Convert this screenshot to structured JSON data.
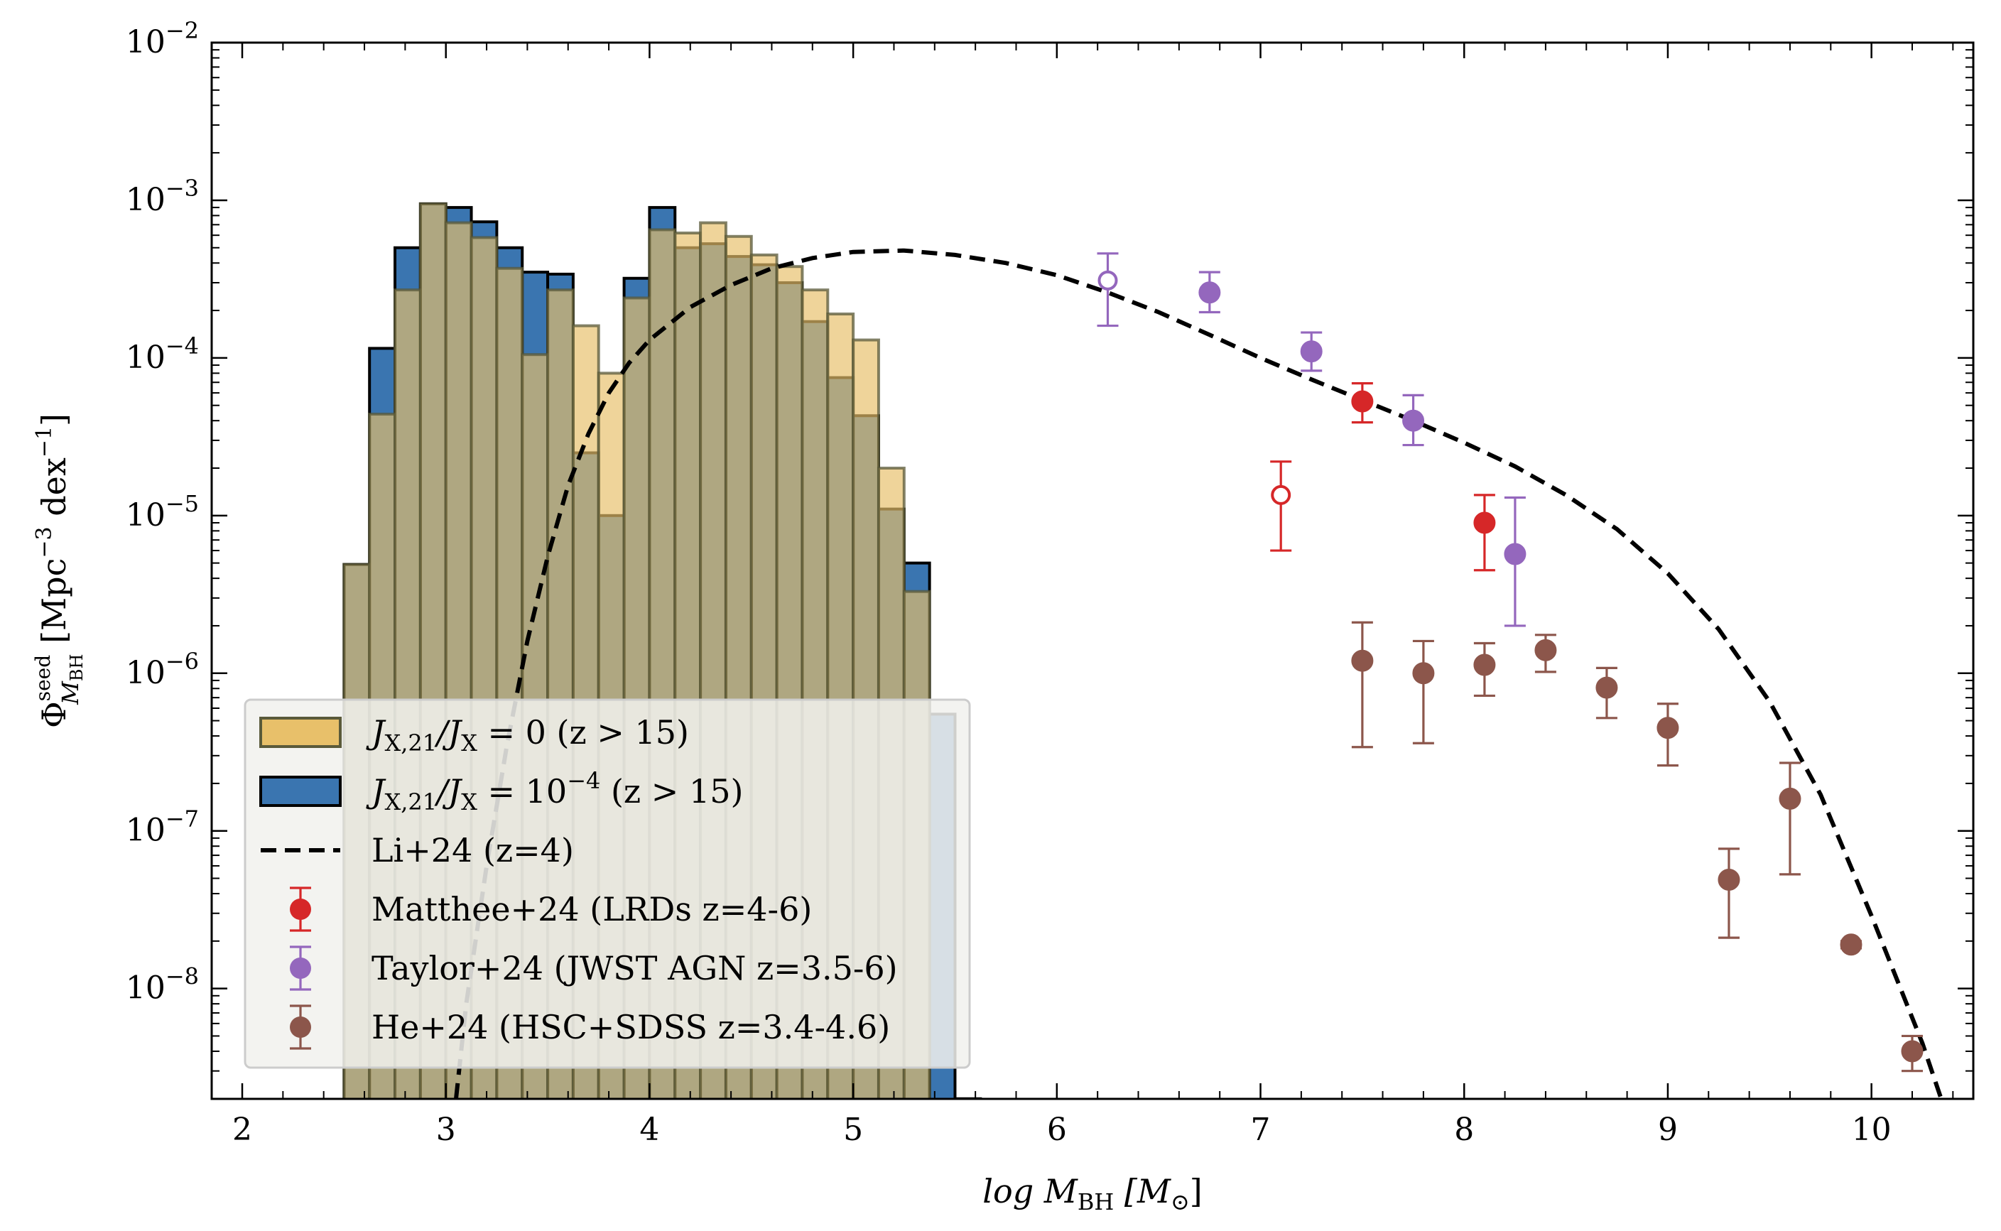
{
  "chart_data": {
    "type": "bar",
    "title": "",
    "xlabel": {
      "prefix": "log  M",
      "sub": "BH",
      "bracket": "[M",
      "bracket_sub": "⊙",
      "bracket_end": "]"
    },
    "ylabel": {
      "main": "Φ",
      "sup": "seed",
      "sub": "M",
      "subsub": "BH",
      "units_pre": "[Mpc",
      "exp1": "−3",
      "units_mid": "dex",
      "exp2": "−1",
      "units_end": "]"
    },
    "xlim": [
      1.85,
      10.5
    ],
    "ylim_log10": [
      -8.7,
      -2
    ],
    "yscale": "log",
    "x_ticks": [
      {
        "value": 2,
        "label": "2"
      },
      {
        "value": 3,
        "label": "3"
      },
      {
        "value": 4,
        "label": "4"
      },
      {
        "value": 5,
        "label": "5"
      },
      {
        "value": 6,
        "label": "6"
      },
      {
        "value": 7,
        "label": "7"
      },
      {
        "value": 8,
        "label": "8"
      },
      {
        "value": 9,
        "label": "9"
      },
      {
        "value": 10,
        "label": "10"
      }
    ],
    "y_ticks": [
      {
        "exp": -2,
        "base": "10",
        "sup": "−2"
      },
      {
        "exp": -3,
        "base": "10",
        "sup": "−3"
      },
      {
        "exp": -4,
        "base": "10",
        "sup": "−4"
      },
      {
        "exp": -5,
        "base": "10",
        "sup": "−5"
      },
      {
        "exp": -6,
        "base": "10",
        "sup": "−6"
      },
      {
        "exp": -7,
        "base": "10",
        "sup": "−7"
      },
      {
        "exp": -8,
        "base": "10",
        "sup": "−8"
      }
    ],
    "hist_bin_edges_start": 2.5,
    "hist_bin_width": 0.125,
    "histograms": [
      {
        "name": "J_X,21/J_X = 10^-4 (z > 15)",
        "color": "#3a75b0",
        "edge": "#000000",
        "values": [
          4.9e-06,
          0.000115,
          0.0005,
          0.00095,
          0.0009,
          0.00073,
          0.0005,
          0.00035,
          0.00034,
          2.5e-05,
          1e-05,
          0.00032,
          0.0009,
          0.0005,
          0.00053,
          0.00044,
          0.00039,
          0.0003,
          0.00017,
          7.5e-05,
          4.3e-05,
          1.1e-05,
          5e-06,
          5.5e-07,
          2e-09,
          1e-10,
          1e-10
        ]
      },
      {
        "name": "J_X,21/J_X = 0 (z > 15)",
        "color": "#e8c06a",
        "edge": "#5a5a3a",
        "values": [
          4.9e-06,
          4.4e-05,
          0.00027,
          0.00095,
          0.00072,
          0.00058,
          0.00037,
          0.000105,
          0.00027,
          0.00016,
          8e-05,
          0.00024,
          0.00065,
          0.00062,
          0.00072,
          0.00059,
          0.00045,
          0.00038,
          0.00027,
          0.00019,
          0.00013,
          2e-05,
          3.3e-06,
          1e-10,
          1e-10,
          1e-10,
          1e-10
        ]
      }
    ],
    "line_series": {
      "name": "Li+24 (z=4)",
      "color": "#000000",
      "x": [
        3.05,
        3.1,
        3.2,
        3.3,
        3.4,
        3.5,
        3.6,
        3.7,
        3.8,
        3.9,
        4.0,
        4.2,
        4.4,
        4.6,
        4.8,
        5.0,
        5.25,
        5.5,
        5.75,
        6.0,
        6.25,
        6.5,
        6.75,
        7.0,
        7.25,
        7.5,
        7.75,
        8.0,
        8.25,
        8.5,
        8.75,
        9.0,
        9.25,
        9.5,
        9.75,
        10.0,
        10.25,
        10.5
      ],
      "y": [
        2e-09,
        8e-09,
        6e-08,
        3.5e-07,
        1.6e-06,
        5.5e-06,
        1.55e-05,
        3.3e-05,
        6e-05,
        9.3e-05,
        0.00013,
        0.00021,
        0.00029,
        0.00037,
        0.00043,
        0.00047,
        0.00048,
        0.00045,
        0.0004,
        0.000335,
        0.00026,
        0.000195,
        0.00014,
        0.0001,
        7.3e-05,
        5.4e-05,
        4e-05,
        2.9e-05,
        2.05e-05,
        1.35e-05,
        8.2e-06,
        4.3e-06,
        1.9e-06,
        6.6e-07,
        1.7e-07,
        2.9e-08,
        4.5e-09,
        5e-10
      ]
    },
    "points": [
      {
        "name": "Matthee+24 (LRDs z=4-6)",
        "color": "#d62728",
        "data": [
          {
            "x": 7.1,
            "y": 1.35e-05,
            "ylo": 6e-06,
            "yhi": 2.2e-05,
            "open": true
          },
          {
            "x": 7.5,
            "y": 5.3e-05,
            "ylo": 3.9e-05,
            "yhi": 6.9e-05,
            "open": false
          },
          {
            "x": 8.1,
            "y": 9e-06,
            "ylo": 4.5e-06,
            "yhi": 1.35e-05,
            "open": false
          }
        ]
      },
      {
        "name": "Taylor+24 (JWST AGN z=3.5-6)",
        "color": "#9467bd",
        "data": [
          {
            "x": 6.25,
            "y": 0.00031,
            "ylo": 0.00016,
            "yhi": 0.00046,
            "open": true
          },
          {
            "x": 6.75,
            "y": 0.00026,
            "ylo": 0.000195,
            "yhi": 0.00035,
            "open": false
          },
          {
            "x": 7.25,
            "y": 0.00011,
            "ylo": 8.3e-05,
            "yhi": 0.000145,
            "open": false
          },
          {
            "x": 7.75,
            "y": 4e-05,
            "ylo": 2.8e-05,
            "yhi": 5.8e-05,
            "open": false
          },
          {
            "x": 8.25,
            "y": 5.7e-06,
            "ylo": 2e-06,
            "yhi": 1.3e-05,
            "open": false
          }
        ]
      },
      {
        "name": "He+24 (HSC+SDSS z=3.4-4.6)",
        "color": "#8c564b",
        "data": [
          {
            "x": 7.5,
            "y": 1.2e-06,
            "ylo": 3.4e-07,
            "yhi": 2.1e-06,
            "open": false
          },
          {
            "x": 7.8,
            "y": 1e-06,
            "ylo": 3.6e-07,
            "yhi": 1.6e-06,
            "open": false
          },
          {
            "x": 8.1,
            "y": 1.13e-06,
            "ylo": 7.2e-07,
            "yhi": 1.55e-06,
            "open": false
          },
          {
            "x": 8.4,
            "y": 1.4e-06,
            "ylo": 1.02e-06,
            "yhi": 1.75e-06,
            "open": false
          },
          {
            "x": 8.7,
            "y": 8.1e-07,
            "ylo": 5.2e-07,
            "yhi": 1.08e-06,
            "open": false
          },
          {
            "x": 9.0,
            "y": 4.5e-07,
            "ylo": 2.6e-07,
            "yhi": 6.4e-07,
            "open": false
          },
          {
            "x": 9.3,
            "y": 4.9e-08,
            "ylo": 2.1e-08,
            "yhi": 7.7e-08,
            "open": false
          },
          {
            "x": 9.6,
            "y": 1.6e-07,
            "ylo": 5.3e-08,
            "yhi": 2.7e-07,
            "open": false
          },
          {
            "x": 9.9,
            "y": 1.9e-08,
            "ylo": 1.8e-08,
            "yhi": 2e-08,
            "open": false
          },
          {
            "x": 10.2,
            "y": 4e-09,
            "ylo": 3e-09,
            "yhi": 5e-09,
            "open": false
          }
        ]
      }
    ],
    "legend": {
      "placement": "lower-left",
      "entries": [
        {
          "kind": "patch",
          "color": "#e8c06a",
          "edge": "#5a5a3a",
          "pre": "J",
          "sub": "X,21",
          "mid": "/J",
          "sub2": "X",
          "eq": " = 0",
          "sup": "",
          "post": " (z > 15)"
        },
        {
          "kind": "patch",
          "color": "#3a75b0",
          "edge": "#000000",
          "pre": "J",
          "sub": "X,21",
          "mid": "/J",
          "sub2": "X",
          "eq": " = 10",
          "sup": "−4",
          "post": " (z > 15)"
        },
        {
          "kind": "line",
          "color": "#000000",
          "label": "Li+24 (z=4)"
        },
        {
          "kind": "errpoint",
          "color": "#d62728",
          "label": "Matthee+24 (LRDs z=4-6)"
        },
        {
          "kind": "errpoint",
          "color": "#9467bd",
          "label": "Taylor+24 (JWST AGN z=3.5-6)"
        },
        {
          "kind": "errpoint",
          "color": "#8c564b",
          "label": "He+24 (HSC+SDSS z=3.4-4.6)"
        }
      ]
    }
  }
}
